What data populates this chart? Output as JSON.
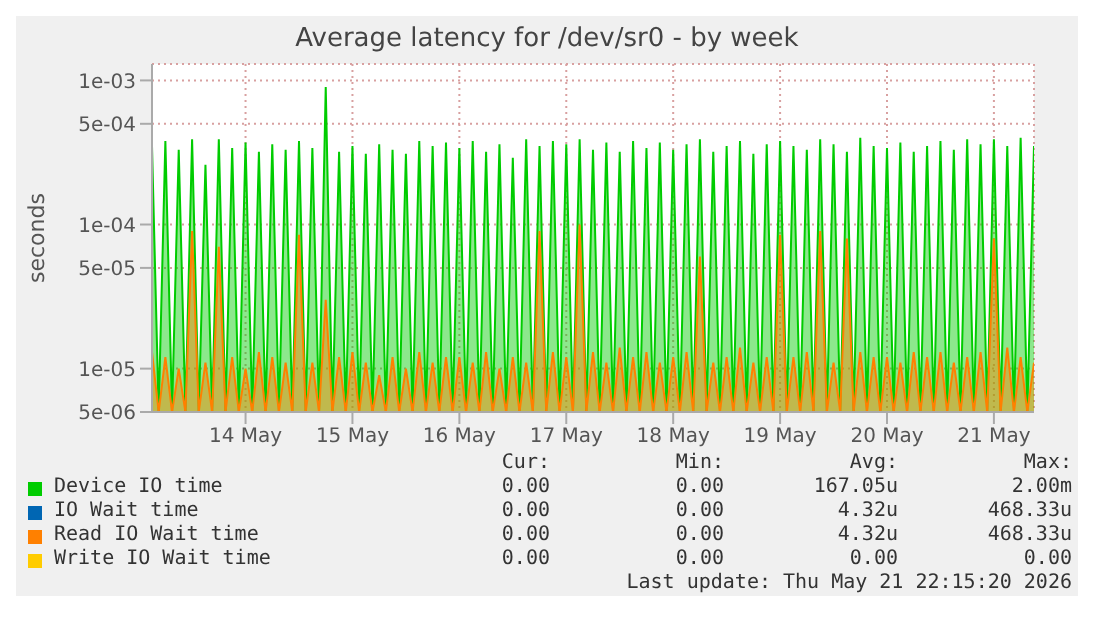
{
  "chart_data": {
    "type": "area",
    "title": "Average latency for /dev/sr0 - by week",
    "ylabel": "seconds",
    "log": "y",
    "grid": true,
    "legend": "bottom",
    "xlim": [
      "2026-05-13T03:00",
      "2026-05-21T09:00"
    ],
    "xticks": [
      {
        "value": "2026-05-14",
        "label": "14 May"
      },
      {
        "value": "2026-05-15",
        "label": "15 May"
      },
      {
        "value": "2026-05-16",
        "label": "16 May"
      },
      {
        "value": "2026-05-17",
        "label": "17 May"
      },
      {
        "value": "2026-05-18",
        "label": "18 May"
      },
      {
        "value": "2026-05-19",
        "label": "19 May"
      },
      {
        "value": "2026-05-20",
        "label": "20 May"
      },
      {
        "value": "2026-05-21",
        "label": "21 May"
      }
    ],
    "ylim": [
      5e-06,
      0.0013
    ],
    "yticks": [
      {
        "value": 5e-06,
        "label": "5e-06"
      },
      {
        "value": 1e-05,
        "label": "1e-05"
      },
      {
        "value": 5e-05,
        "label": "5e-05"
      },
      {
        "value": 0.0001,
        "label": "1e-04"
      },
      {
        "value": 0.0005,
        "label": "5e-04"
      },
      {
        "value": 0.001,
        "label": "1e-03"
      }
    ],
    "x": [
      "2026-05-13T03:00",
      "2026-05-13T04:30",
      "2026-05-13T06:00",
      "2026-05-13T07:30",
      "2026-05-13T09:00",
      "2026-05-13T10:30",
      "2026-05-13T12:00",
      "2026-05-13T13:30",
      "2026-05-13T15:00",
      "2026-05-13T16:30",
      "2026-05-13T18:00",
      "2026-05-13T19:30",
      "2026-05-13T21:00",
      "2026-05-13T22:30",
      "2026-05-14T00:00",
      "2026-05-14T01:30",
      "2026-05-14T03:00",
      "2026-05-14T04:30",
      "2026-05-14T06:00",
      "2026-05-14T07:30",
      "2026-05-14T09:00",
      "2026-05-14T10:30",
      "2026-05-14T12:00",
      "2026-05-14T13:30",
      "2026-05-14T15:00",
      "2026-05-14T16:30",
      "2026-05-14T18:00",
      "2026-05-14T19:30",
      "2026-05-14T21:00",
      "2026-05-14T22:30",
      "2026-05-15T00:00",
      "2026-05-15T01:30",
      "2026-05-15T03:00",
      "2026-05-15T04:30",
      "2026-05-15T06:00",
      "2026-05-15T07:30",
      "2026-05-15T09:00",
      "2026-05-15T10:30",
      "2026-05-15T12:00",
      "2026-05-15T13:30",
      "2026-05-15T15:00",
      "2026-05-15T16:30",
      "2026-05-15T18:00",
      "2026-05-15T19:30",
      "2026-05-15T21:00",
      "2026-05-15T22:30",
      "2026-05-16T00:00",
      "2026-05-16T01:30",
      "2026-05-16T03:00",
      "2026-05-16T04:30",
      "2026-05-16T06:00",
      "2026-05-16T07:30",
      "2026-05-16T09:00",
      "2026-05-16T10:30",
      "2026-05-16T12:00",
      "2026-05-16T13:30",
      "2026-05-16T15:00",
      "2026-05-16T16:30",
      "2026-05-16T18:00",
      "2026-05-16T19:30",
      "2026-05-16T21:00",
      "2026-05-16T22:30",
      "2026-05-17T00:00",
      "2026-05-17T01:30",
      "2026-05-17T03:00",
      "2026-05-17T04:30",
      "2026-05-17T06:00",
      "2026-05-17T07:30",
      "2026-05-17T09:00",
      "2026-05-17T10:30",
      "2026-05-17T12:00",
      "2026-05-17T13:30",
      "2026-05-17T15:00",
      "2026-05-17T16:30",
      "2026-05-17T18:00",
      "2026-05-17T19:30",
      "2026-05-17T21:00",
      "2026-05-17T22:30",
      "2026-05-18T00:00",
      "2026-05-18T01:30",
      "2026-05-18T03:00",
      "2026-05-18T04:30",
      "2026-05-18T06:00",
      "2026-05-18T07:30",
      "2026-05-18T09:00",
      "2026-05-18T10:30",
      "2026-05-18T12:00",
      "2026-05-18T13:30",
      "2026-05-18T15:00",
      "2026-05-18T16:30",
      "2026-05-18T18:00",
      "2026-05-18T19:30",
      "2026-05-18T21:00",
      "2026-05-18T22:30",
      "2026-05-19T00:00",
      "2026-05-19T01:30",
      "2026-05-19T03:00",
      "2026-05-19T04:30",
      "2026-05-19T06:00",
      "2026-05-19T07:30",
      "2026-05-19T09:00",
      "2026-05-19T10:30",
      "2026-05-19T12:00",
      "2026-05-19T13:30",
      "2026-05-19T15:00",
      "2026-05-19T16:30",
      "2026-05-19T18:00",
      "2026-05-19T19:30",
      "2026-05-19T21:00",
      "2026-05-19T22:30",
      "2026-05-20T00:00",
      "2026-05-20T01:30",
      "2026-05-20T03:00",
      "2026-05-20T04:30",
      "2026-05-20T06:00",
      "2026-05-20T07:30",
      "2026-05-20T09:00",
      "2026-05-20T10:30",
      "2026-05-20T12:00",
      "2026-05-20T13:30",
      "2026-05-20T15:00",
      "2026-05-20T16:30",
      "2026-05-20T18:00",
      "2026-05-20T19:30",
      "2026-05-20T21:00",
      "2026-05-20T22:30",
      "2026-05-21T00:00",
      "2026-05-21T01:30",
      "2026-05-21T03:00",
      "2026-05-21T04:30",
      "2026-05-21T06:00",
      "2026-05-21T07:30",
      "2026-05-21T09:00"
    ],
    "series": [
      {
        "name": "Device IO time",
        "color": "#00cc00",
        "values": [
          0.00035,
          5e-06,
          0.00038,
          5e-06,
          0.00033,
          5e-06,
          0.00039,
          5e-06,
          0.00026,
          5e-06,
          0.00039,
          5e-06,
          0.00034,
          5e-06,
          0.00037,
          5e-06,
          0.00032,
          5e-06,
          0.00036,
          5e-06,
          0.00033,
          5e-06,
          0.00038,
          5e-06,
          0.00034,
          5e-06,
          0.0009,
          5e-06,
          0.00032,
          5e-06,
          0.00035,
          5e-06,
          0.00031,
          5e-06,
          0.00036,
          5e-06,
          0.00033,
          5e-06,
          0.00031,
          5e-06,
          0.00038,
          5e-06,
          0.00035,
          5e-06,
          0.00037,
          5e-06,
          0.00034,
          5e-06,
          0.00038,
          5e-06,
          0.00032,
          5e-06,
          0.00036,
          5e-06,
          0.00029,
          5e-06,
          0.00039,
          5e-06,
          0.00035,
          5e-06,
          0.00038,
          5e-06,
          0.00036,
          5e-06,
          0.00039,
          5e-06,
          0.00033,
          5e-06,
          0.00037,
          5e-06,
          0.00032,
          5e-06,
          0.00038,
          5e-06,
          0.00034,
          5e-06,
          0.00037,
          5e-06,
          0.00033,
          5e-06,
          0.00036,
          5e-06,
          0.00039,
          5e-06,
          0.00032,
          5e-06,
          0.00035,
          5e-06,
          0.00038,
          5e-06,
          0.00031,
          5e-06,
          0.00036,
          5e-06,
          0.00038,
          5e-06,
          0.00035,
          5e-06,
          0.00033,
          5e-06,
          0.00039,
          5e-06,
          0.00036,
          5e-06,
          0.00032,
          5e-06,
          0.0004,
          5e-06,
          0.00035,
          5e-06,
          0.00034,
          5e-06,
          0.00037,
          5e-06,
          0.00032,
          5e-06,
          0.00035,
          5e-06,
          0.00038,
          5e-06,
          0.00033,
          5e-06,
          0.00039,
          5e-06,
          0.00036,
          5e-06,
          0.00039,
          5e-06,
          0.00035,
          5e-06,
          0.0004,
          5e-06,
          0.00035
        ]
      },
      {
        "name": "IO Wait time",
        "color": "#0066b3",
        "values": [
          null,
          null,
          null,
          null,
          null,
          null,
          null,
          null,
          null,
          null,
          null,
          null,
          null,
          null,
          null,
          null,
          null,
          null,
          null,
          null,
          null,
          null,
          null,
          null,
          null,
          null,
          null,
          null,
          null,
          null,
          null,
          null,
          null,
          null,
          null,
          null,
          null,
          null,
          null,
          null,
          null,
          null,
          null,
          null,
          null,
          null,
          null,
          null,
          null,
          null,
          null,
          null,
          null,
          null,
          null,
          null,
          null,
          null,
          null,
          null,
          null,
          null,
          null,
          null,
          null,
          null,
          null,
          null,
          null,
          null,
          null,
          null,
          null,
          null,
          null,
          null,
          null,
          null,
          null,
          null,
          null,
          null,
          null,
          null,
          null,
          null,
          null,
          null,
          null,
          null,
          null,
          null,
          null,
          null,
          null,
          null,
          null,
          null,
          null,
          null,
          null,
          null,
          null,
          null,
          null,
          null,
          null,
          null,
          null,
          null,
          null,
          null,
          null,
          null,
          null,
          null,
          null,
          null,
          null,
          null,
          null,
          null,
          null,
          null,
          null,
          null,
          null,
          null,
          null,
          null,
          null,
          null,
          null
        ]
      },
      {
        "name": "Read IO Wait time",
        "color": "#ff8000",
        "values": [
          1.3e-05,
          5e-06,
          1.2e-05,
          5e-06,
          1e-05,
          5e-06,
          9e-05,
          5e-06,
          1.1e-05,
          5e-06,
          7e-05,
          5e-06,
          1.2e-05,
          5e-06,
          1e-05,
          5e-06,
          1.3e-05,
          5e-06,
          1.2e-05,
          5e-06,
          1.1e-05,
          5e-06,
          8.5e-05,
          5e-06,
          1.1e-05,
          5e-06,
          3e-05,
          5e-06,
          1.2e-05,
          5e-06,
          1.3e-05,
          5e-06,
          1.1e-05,
          5e-06,
          9e-06,
          5e-06,
          1.2e-05,
          5e-06,
          1e-05,
          5e-06,
          1.3e-05,
          5e-06,
          1.1e-05,
          5e-06,
          1.2e-05,
          5e-06,
          1.2e-05,
          5e-06,
          1.1e-05,
          5e-06,
          1.3e-05,
          5e-06,
          1e-05,
          5e-06,
          1.2e-05,
          5e-06,
          1.1e-05,
          5e-06,
          9e-05,
          5e-06,
          1.3e-05,
          5e-06,
          1.2e-05,
          5e-06,
          0.0001,
          5e-06,
          1.3e-05,
          5e-06,
          1.1e-05,
          5e-06,
          1.4e-05,
          5e-06,
          1.2e-05,
          5e-06,
          1.3e-05,
          5e-06,
          1.1e-05,
          5e-06,
          1.2e-05,
          5e-06,
          1.3e-05,
          5e-06,
          6e-05,
          5e-06,
          1.1e-05,
          5e-06,
          1.2e-05,
          5e-06,
          1.4e-05,
          5e-06,
          1.1e-05,
          5e-06,
          1.2e-05,
          5e-06,
          8.5e-05,
          5e-06,
          1.2e-05,
          5e-06,
          1.3e-05,
          5e-06,
          9e-05,
          5e-06,
          1.1e-05,
          5e-06,
          8e-05,
          5e-06,
          1.3e-05,
          5e-06,
          1.2e-05,
          5e-06,
          1.2e-05,
          5e-06,
          1.1e-05,
          5e-06,
          1.3e-05,
          5e-06,
          1.2e-05,
          5e-06,
          1.3e-05,
          5e-06,
          1.1e-05,
          5e-06,
          1.2e-05,
          5e-06,
          1.3e-05,
          5e-06,
          8e-05,
          5e-06,
          1.4e-05,
          5e-06,
          1.2e-05,
          5e-06,
          1.1e-05
        ]
      },
      {
        "name": "Write IO Wait time",
        "color": "#ffcc00",
        "values": [
          null,
          null,
          null,
          null,
          null,
          null,
          null,
          null,
          null,
          null,
          null,
          null,
          null,
          null,
          null,
          null,
          null,
          null,
          null,
          null,
          null,
          null,
          null,
          null,
          null,
          null,
          null,
          null,
          null,
          null,
          null,
          null,
          null,
          null,
          null,
          null,
          null,
          null,
          null,
          null,
          null,
          null,
          null,
          null,
          null,
          null,
          null,
          null,
          null,
          null,
          null,
          null,
          null,
          null,
          null,
          null,
          null,
          null,
          null,
          null,
          null,
          null,
          null,
          null,
          null,
          null,
          null,
          null,
          null,
          null,
          null,
          null,
          null,
          null,
          null,
          null,
          null,
          null,
          null,
          null,
          null,
          null,
          null,
          null,
          null,
          null,
          null,
          null,
          null,
          null,
          null,
          null,
          null,
          null,
          null,
          null,
          null,
          null,
          null,
          null,
          null,
          null,
          null,
          null,
          null,
          null,
          null,
          null,
          null,
          null,
          null,
          null,
          null,
          null,
          null,
          null,
          null,
          null,
          null,
          null,
          null,
          null,
          null,
          null,
          null,
          null,
          null,
          null,
          null,
          null,
          null,
          null,
          null
        ]
      }
    ],
    "annotations": [
      "Cur:",
      "Min:",
      "Avg:",
      "Max:",
      "0.00",
      "0.00",
      "167.05u",
      "2.00m",
      "0.00",
      "0.00",
      "4.32u",
      "468.33u",
      "0.00",
      "0.00",
      "4.32u",
      "468.33u",
      "0.00",
      "0.00",
      "0.00",
      "0.00",
      "Last update: Thu May 21 22:15:20 2026"
    ]
  }
}
